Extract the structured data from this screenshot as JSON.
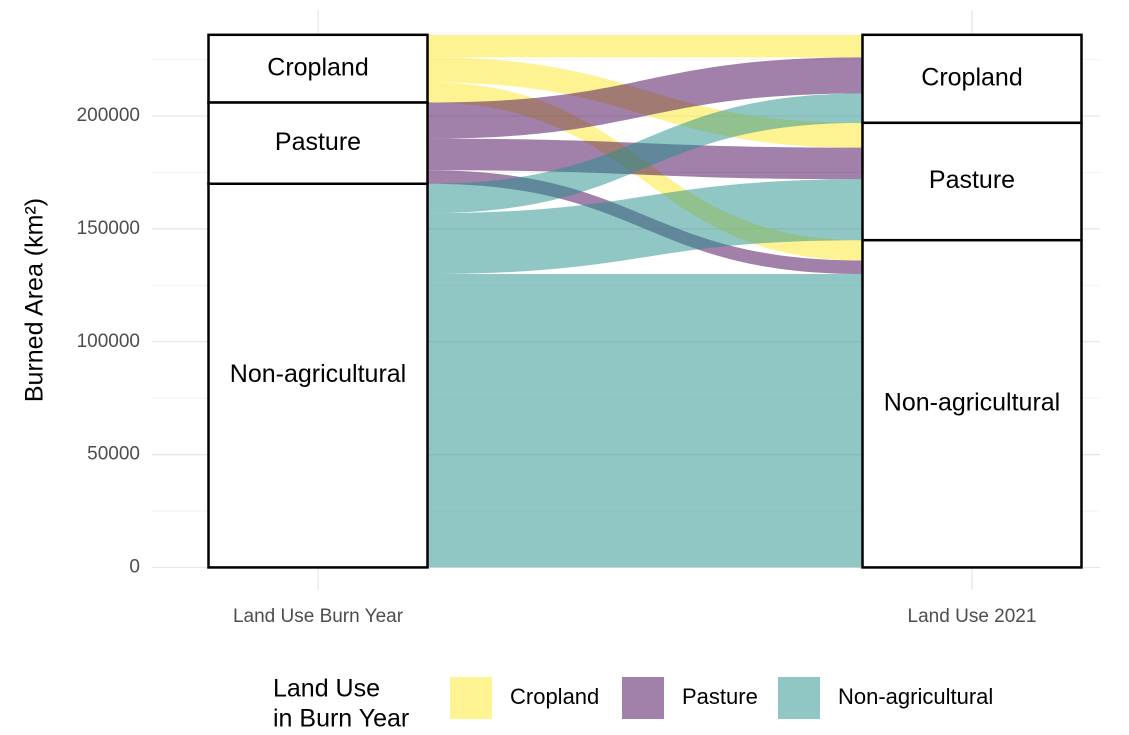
{
  "chart_data": {
    "type": "alluvial",
    "ylabel": "Burned Area (km²)",
    "axes": [
      "Land Use Burn Year",
      "Land Use 2021"
    ],
    "categories": [
      "Cropland",
      "Pasture",
      "Non-agricultural"
    ],
    "series": [
      {
        "name": "Cropland",
        "color": "#fde725",
        "values": [
          10000,
          11000,
          9000
        ]
      },
      {
        "name": "Pasture",
        "color": "#440154",
        "values": [
          16000,
          14000,
          6000
        ]
      },
      {
        "name": "Non-agricultural",
        "color": "#21908c",
        "values": [
          13000,
          27000,
          130000
        ]
      }
    ],
    "ylim": [
      -10000,
      247000
    ],
    "yticks": [
      0,
      50000,
      100000,
      150000,
      200000
    ],
    "grid": true,
    "legend_title": [
      "Land Use",
      "in Burn Year"
    ],
    "legend_position": "bottom"
  }
}
